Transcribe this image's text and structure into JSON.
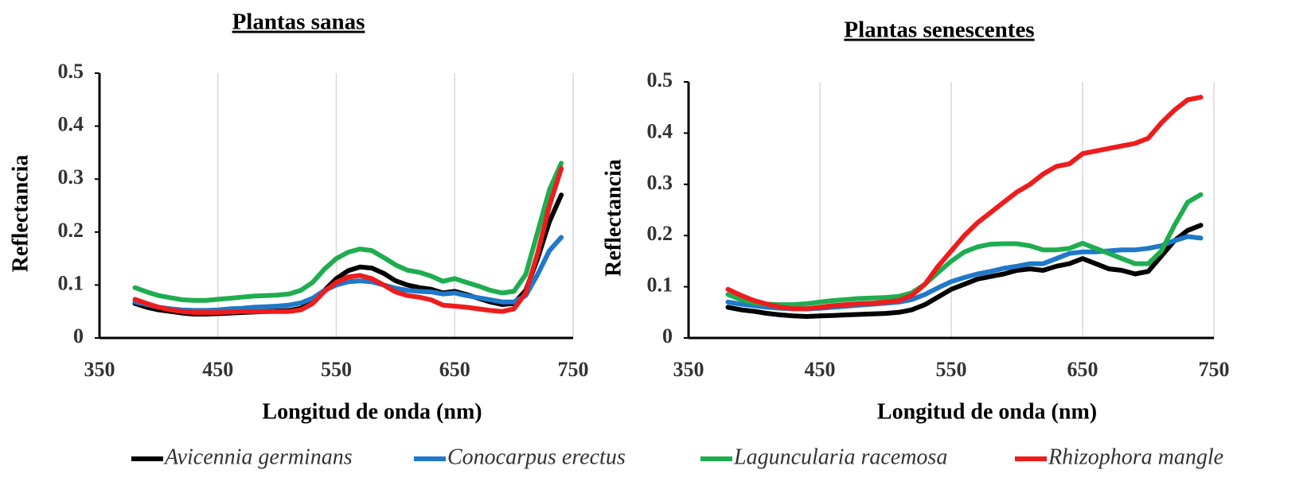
{
  "chart_data": [
    {
      "type": "line",
      "title": "Plantas sanas",
      "x_label": "Longitud de onda (nm)",
      "y_label": "Reflectancia",
      "x": [
        380,
        390,
        400,
        410,
        420,
        430,
        440,
        450,
        460,
        470,
        480,
        490,
        500,
        510,
        520,
        530,
        540,
        550,
        560,
        570,
        580,
        590,
        600,
        610,
        620,
        630,
        640,
        650,
        660,
        670,
        680,
        690,
        700,
        710,
        720,
        730,
        740
      ],
      "xlim": [
        350,
        750
      ],
      "xticks": [
        350,
        450,
        550,
        650,
        750
      ],
      "ylim": [
        0,
        0.5
      ],
      "yticks": [
        0,
        0.1,
        0.2,
        0.3,
        0.4,
        0.5
      ],
      "grid": true,
      "series": [
        {
          "name": "Avicennia germinans",
          "color": "#000000",
          "values": [
            0.065,
            0.058,
            0.053,
            0.05,
            0.047,
            0.045,
            0.045,
            0.046,
            0.047,
            0.048,
            0.049,
            0.05,
            0.051,
            0.052,
            0.056,
            0.068,
            0.09,
            0.112,
            0.127,
            0.134,
            0.132,
            0.122,
            0.108,
            0.1,
            0.095,
            0.092,
            0.085,
            0.088,
            0.082,
            0.075,
            0.068,
            0.063,
            0.065,
            0.09,
            0.15,
            0.22,
            0.27
          ]
        },
        {
          "name": "Conocarpus erectus",
          "color": "#1f78c8",
          "values": [
            0.068,
            0.063,
            0.058,
            0.055,
            0.053,
            0.052,
            0.052,
            0.053,
            0.055,
            0.056,
            0.058,
            0.059,
            0.06,
            0.062,
            0.066,
            0.075,
            0.09,
            0.1,
            0.106,
            0.108,
            0.106,
            0.1,
            0.094,
            0.09,
            0.088,
            0.087,
            0.083,
            0.085,
            0.08,
            0.076,
            0.072,
            0.068,
            0.068,
            0.08,
            0.12,
            0.165,
            0.19
          ]
        },
        {
          "name": "Laguncularia racemosa",
          "color": "#1fad4f",
          "values": [
            0.095,
            0.087,
            0.08,
            0.076,
            0.072,
            0.071,
            0.071,
            0.073,
            0.075,
            0.077,
            0.079,
            0.08,
            0.081,
            0.083,
            0.09,
            0.105,
            0.13,
            0.15,
            0.162,
            0.168,
            0.165,
            0.152,
            0.138,
            0.128,
            0.124,
            0.117,
            0.107,
            0.112,
            0.105,
            0.098,
            0.09,
            0.085,
            0.088,
            0.12,
            0.2,
            0.28,
            0.33
          ]
        },
        {
          "name": "Rhizophora mangle",
          "color": "#ee1c1c",
          "values": [
            0.073,
            0.065,
            0.058,
            0.053,
            0.05,
            0.048,
            0.048,
            0.048,
            0.049,
            0.05,
            0.05,
            0.05,
            0.05,
            0.05,
            0.053,
            0.065,
            0.088,
            0.105,
            0.115,
            0.118,
            0.112,
            0.1,
            0.087,
            0.08,
            0.077,
            0.072,
            0.062,
            0.06,
            0.058,
            0.055,
            0.052,
            0.05,
            0.055,
            0.085,
            0.16,
            0.25,
            0.32
          ]
        }
      ]
    },
    {
      "type": "line",
      "title": "Plantas senescentes",
      "x_label": "Longitud de onda (nm)",
      "y_label": "Reflectancia",
      "x": [
        380,
        390,
        400,
        410,
        420,
        430,
        440,
        450,
        460,
        470,
        480,
        490,
        500,
        510,
        520,
        530,
        540,
        550,
        560,
        570,
        580,
        590,
        600,
        610,
        620,
        630,
        640,
        650,
        660,
        670,
        680,
        690,
        700,
        710,
        720,
        730,
        740
      ],
      "xlim": [
        350,
        750
      ],
      "xticks": [
        350,
        450,
        550,
        650,
        750
      ],
      "ylim": [
        0,
        0.5
      ],
      "yticks": [
        0,
        0.1,
        0.2,
        0.3,
        0.4,
        0.5
      ],
      "grid": true,
      "series": [
        {
          "color": "#000000",
          "values": [
            0.06,
            0.055,
            0.052,
            0.048,
            0.045,
            0.043,
            0.042,
            0.043,
            0.044,
            0.045,
            0.046,
            0.047,
            0.048,
            0.05,
            0.055,
            0.065,
            0.08,
            0.095,
            0.105,
            0.115,
            0.12,
            0.125,
            0.132,
            0.135,
            0.132,
            0.14,
            0.145,
            0.155,
            0.145,
            0.135,
            0.132,
            0.125,
            0.13,
            0.16,
            0.19,
            0.21,
            0.22
          ]
        },
        {
          "color": "#1f78c8",
          "values": [
            0.07,
            0.066,
            0.063,
            0.06,
            0.058,
            0.057,
            0.057,
            0.058,
            0.06,
            0.062,
            0.064,
            0.066,
            0.068,
            0.07,
            0.075,
            0.085,
            0.098,
            0.11,
            0.118,
            0.125,
            0.13,
            0.136,
            0.14,
            0.145,
            0.145,
            0.155,
            0.165,
            0.168,
            0.168,
            0.17,
            0.172,
            0.172,
            0.175,
            0.18,
            0.19,
            0.198,
            0.195
          ]
        },
        {
          "color": "#1fad4f",
          "values": [
            0.085,
            0.075,
            0.068,
            0.066,
            0.065,
            0.065,
            0.067,
            0.07,
            0.073,
            0.075,
            0.077,
            0.078,
            0.079,
            0.081,
            0.088,
            0.105,
            0.128,
            0.15,
            0.168,
            0.178,
            0.183,
            0.184,
            0.184,
            0.18,
            0.172,
            0.172,
            0.175,
            0.185,
            0.175,
            0.165,
            0.155,
            0.145,
            0.145,
            0.17,
            0.22,
            0.265,
            0.28
          ]
        },
        {
          "color": "#ee1c1c",
          "values": [
            0.095,
            0.083,
            0.073,
            0.066,
            0.06,
            0.057,
            0.057,
            0.06,
            0.063,
            0.065,
            0.067,
            0.068,
            0.07,
            0.073,
            0.083,
            0.105,
            0.14,
            0.17,
            0.2,
            0.225,
            0.245,
            0.265,
            0.285,
            0.3,
            0.32,
            0.335,
            0.34,
            0.36,
            0.365,
            0.37,
            0.375,
            0.38,
            0.39,
            0.42,
            0.445,
            0.465,
            0.47
          ]
        }
      ]
    }
  ]
}
